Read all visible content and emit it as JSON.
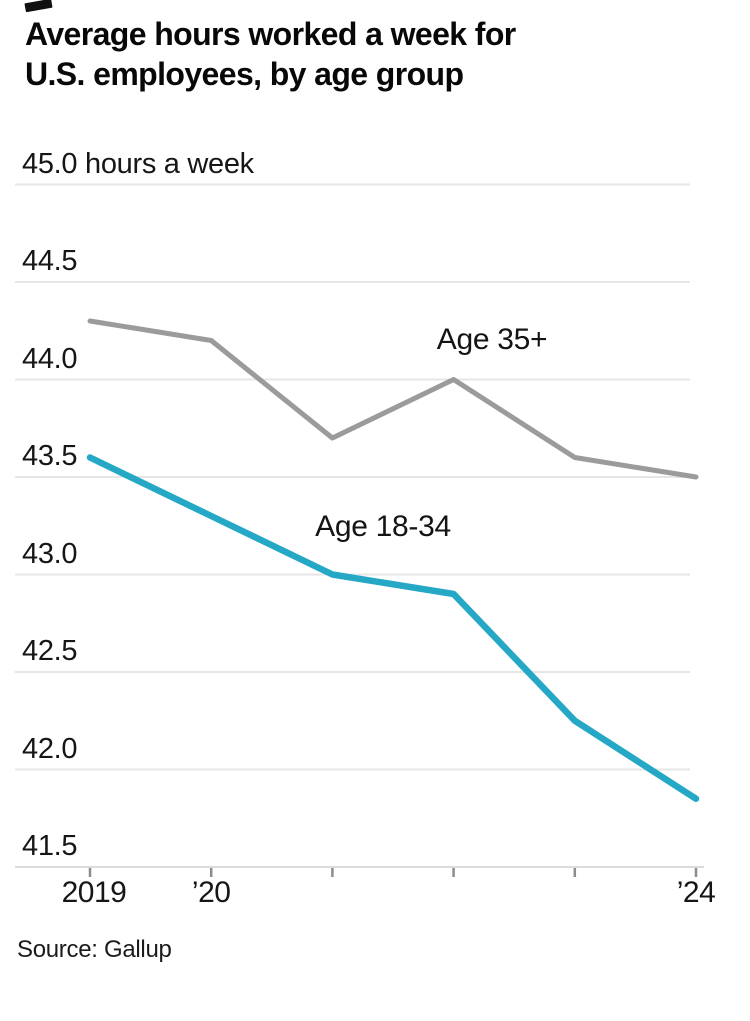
{
  "title": {
    "line1": "Average hours worked a week for",
    "line2": "U.S. employees, by age group"
  },
  "source": "Source: Gallup",
  "chart_data": {
    "type": "line",
    "title": "Average hours worked a week for U.S. employees, by age group",
    "x": [
      "2019",
      "2020",
      "2021",
      "2022",
      "2023",
      "2024"
    ],
    "x_tick_labels": [
      "2019",
      "’20",
      "",
      "",
      "",
      "’24"
    ],
    "y_ticks": [
      {
        "value": 45.0,
        "label": "45.0 hours a week"
      },
      {
        "value": 44.5,
        "label": "44.5"
      },
      {
        "value": 44.0,
        "label": "44.0"
      },
      {
        "value": 43.5,
        "label": "43.5"
      },
      {
        "value": 43.0,
        "label": "43.0"
      },
      {
        "value": 42.5,
        "label": "42.5"
      },
      {
        "value": 42.0,
        "label": "42.0"
      },
      {
        "value": 41.5,
        "label": "41.5"
      }
    ],
    "ylim": [
      41.5,
      45.0
    ],
    "xlabel": "",
    "ylabel": "hours a week",
    "grid": true,
    "legend_position": "inline-annotations",
    "series": [
      {
        "name": "Age 35+",
        "color": "#9b9b9b",
        "values": [
          44.3,
          44.2,
          43.7,
          44.0,
          43.6,
          43.5
        ]
      },
      {
        "name": "Age 18-34",
        "color": "#24a8c6",
        "values": [
          43.6,
          43.3,
          43.0,
          42.9,
          42.25,
          41.85
        ]
      }
    ]
  },
  "colors": {
    "gridline": "#e6e6e6",
    "axis_line": "#dcdcdc",
    "tick_mark": "#8c8c8c",
    "text": "#141414"
  }
}
